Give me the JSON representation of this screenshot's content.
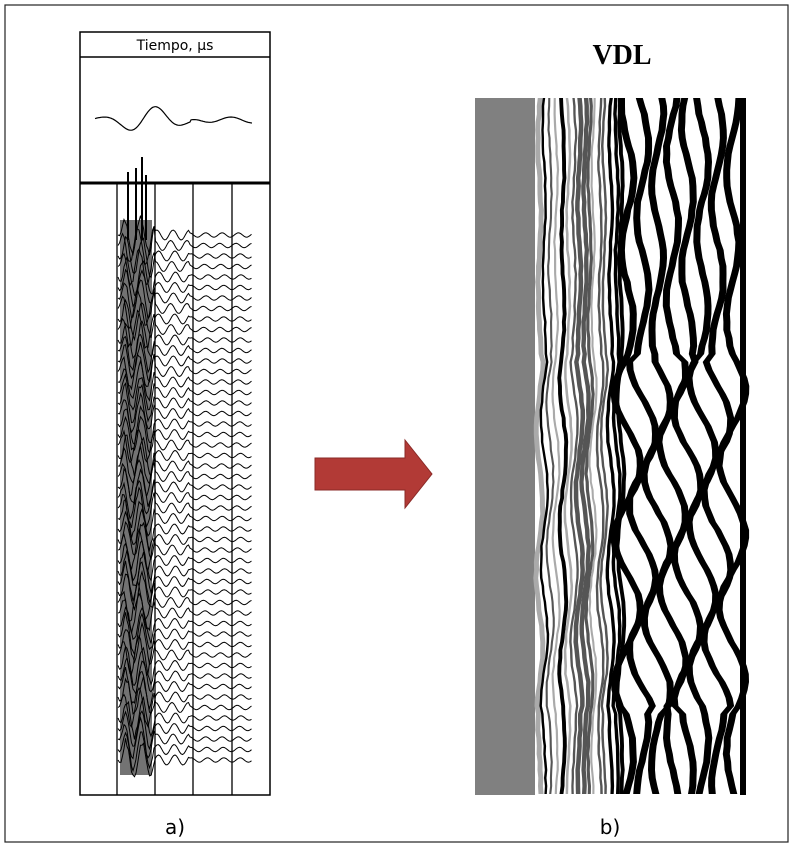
{
  "panel_a": {
    "header": "Tiempo, µs",
    "label": "a)"
  },
  "panel_b": {
    "title": "VDL",
    "label": "b)"
  }
}
